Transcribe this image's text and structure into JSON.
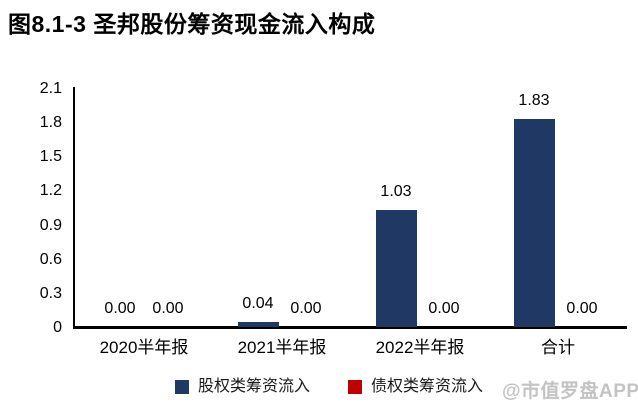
{
  "title": "图8.1-3 圣邦股份筹资现金流入构成",
  "watermark": "@市值罗盘APP",
  "colors": {
    "equity_series": "#1F3864",
    "debt_series": "#C00000",
    "axis": "#000000",
    "text": "#000000",
    "watermark": "#C3C3C3",
    "background": "#FFFFFF"
  },
  "chart_data": {
    "type": "bar",
    "title": "图8.1-3 圣邦股份筹资现金流入构成",
    "categories": [
      "2020半年报",
      "2021半年报",
      "2022半年报",
      "合计"
    ],
    "series": [
      {
        "name": "股权类筹资流入",
        "color": "#1F3864",
        "values": [
          0.0,
          0.04,
          1.03,
          1.83
        ],
        "data_labels": [
          "0.00",
          "0.04",
          "1.03",
          "1.83"
        ]
      },
      {
        "name": "债权类筹资流入",
        "color": "#C00000",
        "values": [
          0.0,
          0.0,
          0.0,
          0.0
        ],
        "data_labels": [
          "0.00",
          "0.00",
          "0.00",
          "0.00"
        ]
      }
    ],
    "xlabel": "",
    "ylabel": "",
    "ylim": [
      0,
      2.1
    ],
    "yticks": [
      0,
      0.3,
      0.6,
      0.9,
      1.2,
      1.5,
      1.8,
      2.1
    ],
    "ytick_labels": [
      "0",
      "0.3",
      "0.6",
      "0.9",
      "1.2",
      "1.5",
      "1.8",
      "2.1"
    ],
    "grid": false,
    "legend_position": "bottom"
  }
}
